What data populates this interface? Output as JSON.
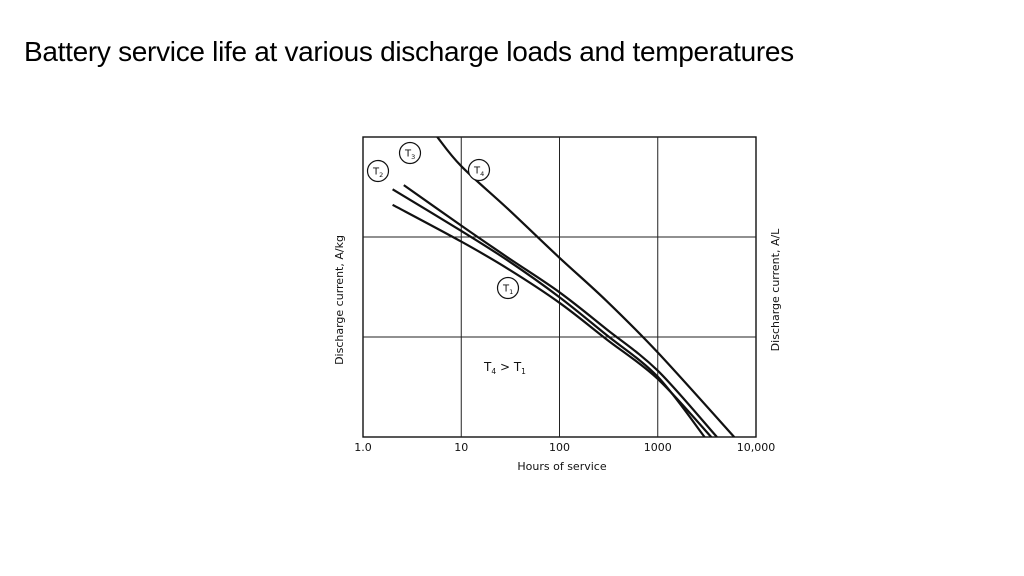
{
  "slide": {
    "title": "Battery service life at various discharge loads and temperatures"
  },
  "chart_data": {
    "type": "line",
    "title": "",
    "xlabel": "Hours of service",
    "ylabel": "Discharge current, A/kg",
    "ylabel_right": "Discharge current, A/L",
    "x_scale": "log",
    "xlim": [
      1.0,
      10000
    ],
    "x_ticks": [
      {
        "value": 1,
        "label": "1.0"
      },
      {
        "value": 10,
        "label": "10"
      },
      {
        "value": 100,
        "label": "100"
      },
      {
        "value": 1000,
        "label": "1000"
      },
      {
        "value": 10000,
        "label": "10,000"
      }
    ],
    "y_scale": "log",
    "ylim": [
      1,
      1000
    ],
    "y_ticks_labeled": false,
    "grid": true,
    "annotation": {
      "text": "T",
      "sub_a": "4",
      "op": " > ",
      "text_b": "T",
      "sub_b": "1"
    },
    "series": [
      {
        "name": "T",
        "sub": "1",
        "x": [
          2.0,
          10,
          30,
          100,
          300,
          1000,
          3500
        ],
        "y": [
          210,
          90,
          48,
          22,
          9.5,
          3.8,
          1.0
        ]
      },
      {
        "name": "T",
        "sub": "2",
        "x": [
          2.0,
          10,
          30,
          100,
          300,
          1000,
          3000
        ],
        "y": [
          300,
          115,
          58,
          25,
          10.5,
          4.0,
          1.0
        ]
      },
      {
        "name": "T",
        "sub": "3",
        "x": [
          2.6,
          10,
          30,
          100,
          300,
          1000,
          4000
        ],
        "y": [
          330,
          130,
          62,
          28,
          12,
          4.6,
          1.0
        ]
      },
      {
        "name": "T",
        "sub": "4",
        "x": [
          5.7,
          10,
          30,
          100,
          300,
          1000,
          6000
        ],
        "y": [
          1000,
          510,
          190,
          62,
          23,
          7.0,
          1.0
        ]
      }
    ]
  }
}
